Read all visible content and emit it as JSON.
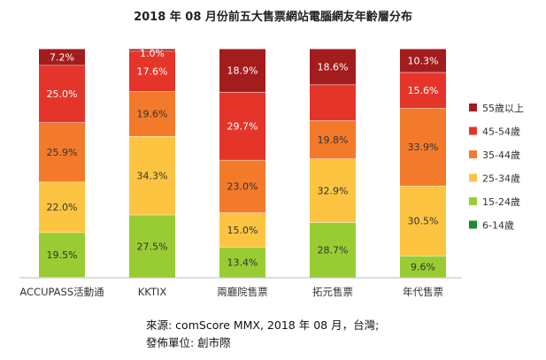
{
  "chart_data": {
    "type": "bar",
    "stacked": true,
    "normalized": true,
    "title": "2018 年 08 月份前五大售票網站電腦網友年齡層分布",
    "categories": [
      "ACCUPASS活動通",
      "KKTIX",
      "兩廳院售票",
      "拓元售票",
      "年代售票"
    ],
    "series": [
      {
        "name": "6-14歲",
        "color": "#1e8a2e",
        "values": [
          0.3,
          0.0,
          0.0,
          0.0,
          0.0
        ]
      },
      {
        "name": "15-24歲",
        "color": "#99cc33",
        "values": [
          19.5,
          27.5,
          13.4,
          28.7,
          9.6
        ]
      },
      {
        "name": "25-34歲",
        "color": "#fdc441",
        "values": [
          22.0,
          34.3,
          15.0,
          32.9,
          30.5
        ]
      },
      {
        "name": "35-44歲",
        "color": "#f47a2b",
        "values": [
          25.9,
          19.6,
          23.0,
          19.8,
          33.9
        ]
      },
      {
        "name": "45-54歲",
        "color": "#e5352a",
        "values": [
          25.0,
          17.6,
          29.7,
          18.6,
          15.6
        ]
      },
      {
        "name": "55歲以上",
        "color": "#a31d1d",
        "values": [
          7.2,
          1.0,
          18.9,
          18.6,
          10.3
        ]
      }
    ],
    "value_labels": [
      [
        "",
        "19.5%",
        "22.0%",
        "25.9%",
        "25.0%",
        "7.2%"
      ],
      [
        "",
        "27.5%",
        "34.3%",
        "19.6%",
        "17.6%",
        "1.0%"
      ],
      [
        "",
        "13.4%",
        "15.0%",
        "23.0%",
        "29.7%",
        "18.9%"
      ],
      [
        "",
        "28.7%",
        "32.9%",
        "19.8%",
        "",
        "18.6%"
      ],
      [
        "",
        "9.6%",
        "30.5%",
        "33.9%",
        "15.6%",
        "10.3%"
      ]
    ],
    "legend_position": "right",
    "ylim": [
      0,
      100
    ],
    "grid": false
  },
  "footer": {
    "source": "來源: comScore MMX, 2018 年 08 月，台灣;",
    "publisher": "發佈單位:  創市際"
  }
}
